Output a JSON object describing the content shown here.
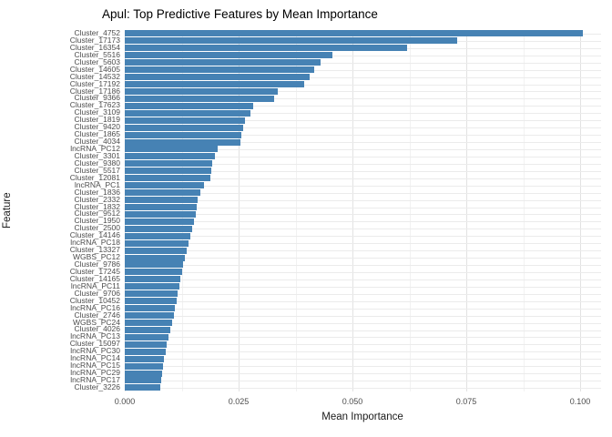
{
  "chart_data": {
    "type": "bar",
    "orientation": "horizontal",
    "title": "Apul: Top Predictive Features by Mean Importance",
    "xlabel": "Mean Importance",
    "ylabel": "Feature",
    "xlim": [
      0,
      0.1046
    ],
    "xticks": {
      "values": [
        0,
        0.025,
        0.05,
        0.075,
        0.1
      ],
      "labels": [
        "0.000",
        "0.025",
        "0.050",
        "0.075",
        "0.100"
      ]
    },
    "grid": "vertical major+minor, horizontal major per category",
    "legend": "none",
    "bar_color": "#4682B4",
    "categories": [
      "Cluster_4752",
      "Cluster_17173",
      "Cluster_16354",
      "Cluster_5516",
      "Cluster_5603",
      "Cluster_14605",
      "Cluster_14532",
      "Cluster_17192",
      "Cluster_17186",
      "Cluster_9366",
      "Cluster_17623",
      "Cluster_3109",
      "Cluster_1819",
      "Cluster_9420",
      "Cluster_1865",
      "Cluster_4034",
      "lncRNA_PC12",
      "Cluster_3301",
      "Cluster_9380",
      "Cluster_5517",
      "Cluster_12081",
      "lncRNA_PC1",
      "Cluster_1836",
      "Cluster_2332",
      "Cluster_1832",
      "Cluster_9512",
      "Cluster_1950",
      "Cluster_2500",
      "Cluster_14146",
      "lncRNA_PC18",
      "Cluster_13327",
      "WGBS_PC12",
      "Cluster_9786",
      "Cluster_17245",
      "Cluster_14165",
      "lncRNA_PC11",
      "Cluster_9706",
      "Cluster_10452",
      "lncRNA_PC16",
      "Cluster_2746",
      "WGBS_PC24",
      "Cluster_4026",
      "lncRNA_PC13",
      "Cluster_15097",
      "lncRNA_PC30",
      "lncRNA_PC14",
      "lncRNA_PC15",
      "lncRNA_PC29",
      "lncRNA_PC17",
      "Cluster_3226"
    ],
    "values": [
      0.1005,
      0.073,
      0.062,
      0.0456,
      0.043,
      0.0416,
      0.0406,
      0.0394,
      0.0336,
      0.0328,
      0.0282,
      0.0276,
      0.0264,
      0.026,
      0.0256,
      0.0254,
      0.0204,
      0.0198,
      0.0192,
      0.019,
      0.0188,
      0.0174,
      0.0166,
      0.016,
      0.0158,
      0.0156,
      0.0151,
      0.0147,
      0.0143,
      0.0139,
      0.0135,
      0.0131,
      0.0128,
      0.0125,
      0.0122,
      0.0119,
      0.0116,
      0.0113,
      0.011,
      0.0107,
      0.0104,
      0.01,
      0.0096,
      0.0092,
      0.0089,
      0.0086,
      0.0084,
      0.0082,
      0.008,
      0.0078
    ]
  },
  "colors": {
    "background": "#FFFFFF",
    "bar": "#4682B4",
    "grid_major": "#E2E2E2",
    "grid_minor": "#F2F2F2",
    "axis_text": "#4D4D4D",
    "title_text": "#000000"
  }
}
